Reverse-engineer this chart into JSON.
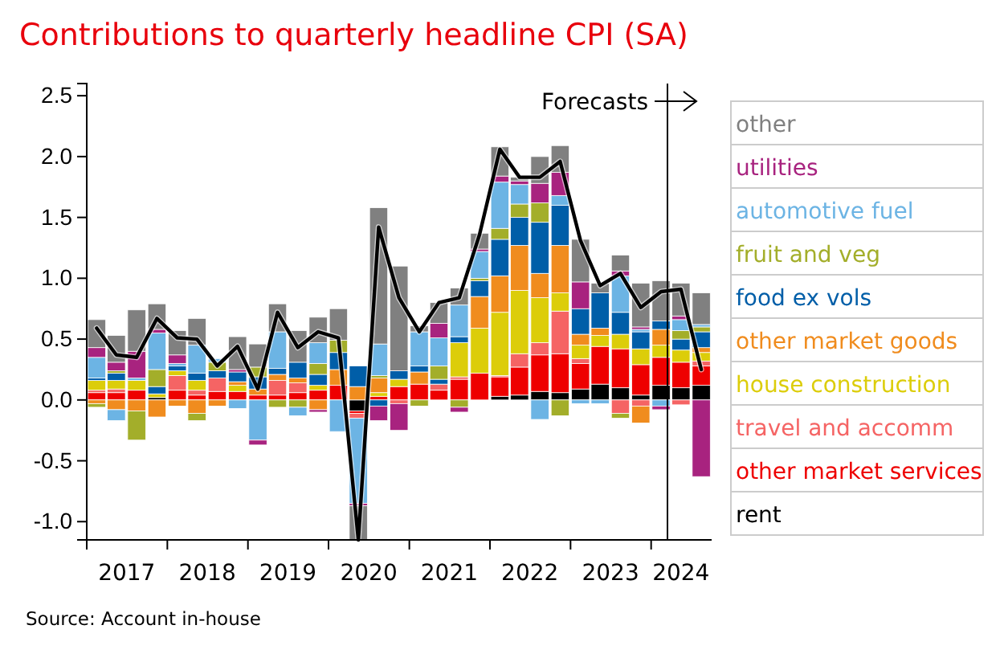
{
  "chart_data": {
    "type": "bar",
    "stacked": true,
    "title": "Contributions to quarterly headline CPI (SA)",
    "annotations": [
      "Source: Account in-house"
    ],
    "x": [
      "2017-02-15",
      "2017-05-15",
      "2017-08-15",
      "2017-11-15",
      "2018-02-15",
      "2018-05-15",
      "2018-08-15",
      "2018-11-15",
      "2019-02-15",
      "2019-05-15",
      "2019-08-15",
      "2019-11-15",
      "2020-02-15",
      "2020-05-15",
      "2020-08-15",
      "2020-11-15",
      "2021-02-15",
      "2021-05-15",
      "2021-08-15",
      "2021-11-15",
      "2022-02-15",
      "2022-05-15",
      "2022-08-15",
      "2022-11-15",
      "2023-02-15",
      "2023-05-15",
      "2023-08-15",
      "2023-11-15",
      "2024-02-15",
      "2024-05-15",
      "2024-08-15"
    ],
    "xlim": [
      "2017-01",
      "2024-10"
    ],
    "xticks": [
      {
        "value": "2017-01",
        "label": null
      },
      {
        "value": "2017-07",
        "label": "2017"
      },
      {
        "value": "2018-01",
        "label": null
      },
      {
        "value": "2018-07",
        "label": "2018"
      },
      {
        "value": "2019-01",
        "label": null
      },
      {
        "value": "2019-07",
        "label": "2019"
      },
      {
        "value": "2020-01",
        "label": null
      },
      {
        "value": "2020-07",
        "label": "2020"
      },
      {
        "value": "2021-01",
        "label": null
      },
      {
        "value": "2021-07",
        "label": "2021"
      },
      {
        "value": "2022-01",
        "label": null
      },
      {
        "value": "2022-07",
        "label": "2022"
      },
      {
        "value": "2023-01",
        "label": null
      },
      {
        "value": "2023-07",
        "label": "2023"
      },
      {
        "value": "2024-01",
        "label": null
      },
      {
        "value": "2024-05-15",
        "label": "2024"
      }
    ],
    "ylim": [
      -1.15,
      2.6
    ],
    "yticks": [
      {
        "value": -1,
        "label": "-1.0"
      },
      {
        "value": -0.5,
        "label": "-0.5"
      },
      {
        "value": 0,
        "label": "0.0"
      },
      {
        "value": 0.5,
        "label": "0.5"
      },
      {
        "value": 1,
        "label": "1.0"
      },
      {
        "value": 1.5,
        "label": "1.5"
      },
      {
        "value": 2,
        "label": "2.0"
      },
      {
        "value": 2.5,
        "label": "2.5"
      }
    ],
    "grid": false,
    "legend": "right",
    "ref_lines": [
      {
        "axis": "x",
        "value": "2024-03-15",
        "label": "Forecasts",
        "color": "#000000"
      }
    ],
    "series": [
      {
        "name": "rent",
        "color": "#000000",
        "values": [
          null,
          0,
          0,
          0.02,
          0,
          0,
          0,
          0,
          0,
          0,
          0,
          0,
          0,
          -0.09,
          0,
          0,
          0,
          0,
          0,
          0,
          0.03,
          0.04,
          0.07,
          0.06,
          0.09,
          0.13,
          0.1,
          0.04,
          0.12,
          0.1,
          0.12
        ]
      },
      {
        "name": "other market services",
        "color": "#ee0000",
        "values": [
          0.06,
          0.06,
          0.08,
          null,
          0.08,
          0.04,
          0.07,
          0.07,
          0.04,
          0.04,
          0.06,
          0.08,
          0.12,
          -0.02,
          0.03,
          0.11,
          0.13,
          0.08,
          0.17,
          0.22,
          0.16,
          0.23,
          0.3,
          0.32,
          0.21,
          0.31,
          0.32,
          0.25,
          0.23,
          0.21,
          0.16
        ]
      },
      {
        "name": "travel and accomm",
        "color": "#f56464",
        "values": [
          0.02,
          0.03,
          0,
          0,
          0.12,
          0.04,
          0.11,
          0,
          0,
          0.12,
          0.08,
          0,
          0,
          -0.04,
          0,
          -0.03,
          0,
          0.05,
          0.02,
          0,
          0.01,
          0.11,
          0.1,
          0.35,
          0.04,
          0,
          -0.11,
          -0.05,
          0,
          -0.04,
          0.04
        ]
      },
      {
        "name": "house construction",
        "color": "#dccd0a",
        "values": [
          0.08,
          0.07,
          0.08,
          0.03,
          0.04,
          0.08,
          0,
          0.05,
          0,
          0,
          0,
          0.04,
          0,
          0,
          0.03,
          0.06,
          0,
          0,
          0.28,
          0.37,
          0.52,
          0.52,
          0.37,
          0.15,
          0.11,
          0.09,
          0.12,
          0.13,
          0.1,
          0.1,
          0.07
        ]
      },
      {
        "name": "other market goods",
        "color": "#f08c1e",
        "values": [
          -0.03,
          -0.08,
          -0.09,
          -0.14,
          -0.05,
          -0.11,
          -0.05,
          0.03,
          0.05,
          0.05,
          0.04,
          -0.08,
          0.13,
          0.11,
          0.12,
          0,
          0.1,
          0,
          0,
          0.26,
          0.3,
          0.37,
          0.2,
          0.39,
          0.09,
          0.06,
          0,
          -0.14,
          0.13,
          0,
          0.04
        ]
      },
      {
        "name": "food ex vols",
        "color": "#005ea8",
        "values": [
          0.02,
          0.06,
          0,
          0.06,
          0.04,
          0.06,
          0.06,
          0.08,
          0.1,
          0.05,
          0.13,
          0.09,
          0.14,
          0.17,
          -0.05,
          0.07,
          0.05,
          0.04,
          0.05,
          0.13,
          0.3,
          0.23,
          0.42,
          0.33,
          0.21,
          0.29,
          0.18,
          0.14,
          0.07,
          0.09,
          0.13
        ]
      },
      {
        "name": "fruit and veg",
        "color": "#a3ae2a",
        "values": [
          -0.03,
          0.02,
          -0.24,
          0.14,
          0,
          -0.06,
          0.07,
          0,
          0.08,
          -0.06,
          -0.06,
          0.09,
          0.1,
          0,
          0.02,
          0,
          -0.05,
          0.11,
          -0.06,
          0.02,
          0.09,
          0.11,
          0.16,
          -0.13,
          0,
          0,
          -0.04,
          0,
          0,
          0.07,
          0.04
        ]
      },
      {
        "name": "automotive fuel",
        "color": "#6cb4e4",
        "values": [
          0.17,
          -0.09,
          0.02,
          0.3,
          0.02,
          0.23,
          0.03,
          -0.07,
          -0.33,
          0.3,
          -0.07,
          0.17,
          -0.26,
          -0.7,
          0.26,
          0,
          0.28,
          0.23,
          0.26,
          0.22,
          0.38,
          0.16,
          -0.16,
          0.08,
          -0.03,
          -0.03,
          0.3,
          0.02,
          -0.05,
          0.09,
          0.02
        ]
      },
      {
        "name": "utilities",
        "color": "#a8237f",
        "values": [
          0.08,
          0.07,
          0.22,
          0.03,
          0.07,
          0,
          0,
          0.02,
          -0.04,
          0,
          0,
          -0.02,
          0,
          -0.02,
          -0.12,
          -0.22,
          0,
          0.12,
          -0.04,
          0.02,
          0.05,
          0.03,
          0.16,
          0.19,
          0.22,
          0,
          0.04,
          0.02,
          -0.03,
          0.03,
          -0.63
        ]
      },
      {
        "name": "other",
        "color": "#808080",
        "values": [
          0.23,
          0.22,
          0.34,
          0.21,
          0.2,
          0.22,
          0,
          0.27,
          0.19,
          0.23,
          0.26,
          0.21,
          0.26,
          -0.28,
          1.12,
          0.86,
          0.05,
          0.17,
          0.14,
          0.13,
          0.24,
          0.03,
          0.22,
          0.22,
          0.35,
          0.08,
          0.13,
          0.36,
          0.33,
          0.27,
          0.26
        ]
      },
      {
        "type": "line",
        "color": "#000000",
        "values": [
          0.59,
          0.37,
          0.35,
          0.67,
          0.51,
          0.5,
          0.28,
          0.44,
          0.09,
          0.72,
          0.43,
          0.56,
          0.51,
          -1.15,
          1.42,
          0.84,
          0.56,
          0.8,
          0.84,
          1.36,
          2.06,
          1.83,
          1.83,
          1.96,
          1.31,
          0.94,
          1.04,
          0.76,
          0.89,
          0.91,
          0.25
        ]
      }
    ]
  }
}
